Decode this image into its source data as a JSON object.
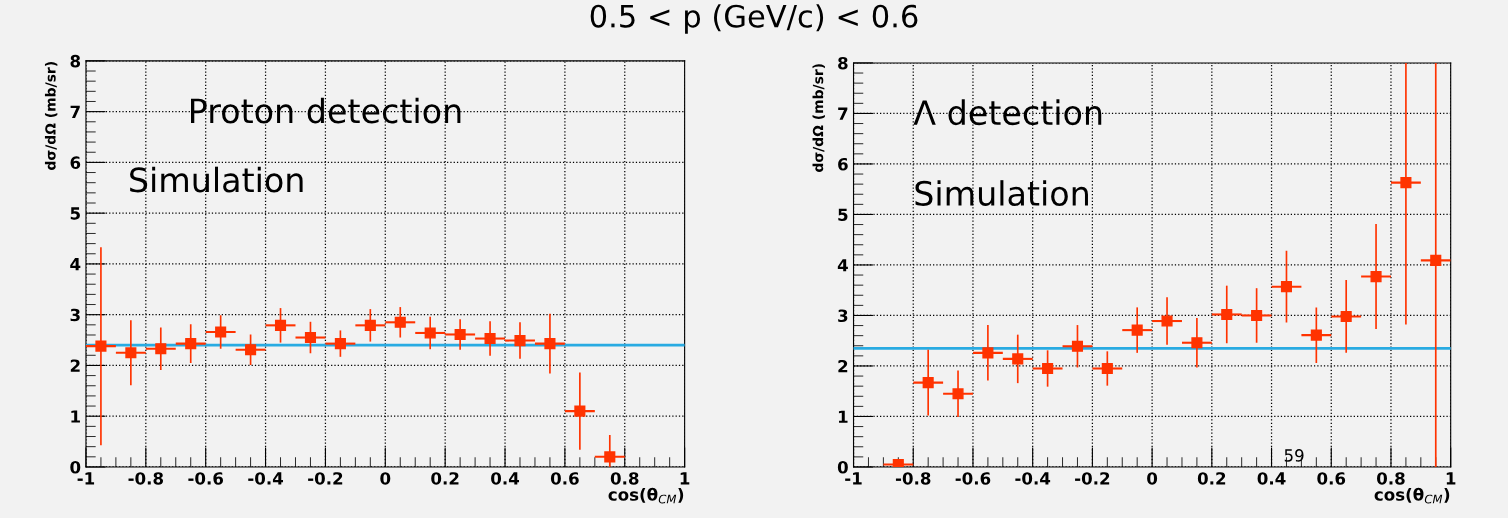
{
  "chart_data": [
    {
      "type": "scatter",
      "title": "0.5 < p (GeV/c) < 0.6",
      "xlabel": "cos(θ$_{CM}$)",
      "ylabel": "dσ/dΩ (mb/sr)",
      "series": [
        {
          "color": "#ff3300",
          "x": [
            -0.95,
            -0.85,
            -0.75,
            -0.65,
            -0.55,
            -0.45,
            -0.35,
            -0.25,
            -0.15,
            -0.05,
            0.05,
            0.15,
            0.25,
            0.35,
            0.45,
            0.55,
            0.65,
            0.75
          ],
          "values": [
            2.38,
            2.25,
            2.33,
            2.43,
            2.66,
            2.31,
            2.79,
            2.55,
            2.43,
            2.79,
            2.85,
            2.64,
            2.61,
            2.53,
            2.49,
            2.43,
            1.1,
            0.2
          ],
          "errors": [
            1.95,
            0.64,
            0.42,
            0.38,
            0.33,
            0.3,
            0.34,
            0.31,
            0.26,
            0.32,
            0.3,
            0.32,
            0.3,
            0.34,
            0.36,
            0.59,
            0.76,
            0.43
          ],
          "xerrors": [
            0.05,
            0.05,
            0.05,
            0.05,
            0.05,
            0.05,
            0.05,
            0.05,
            0.05,
            0.05,
            0.05,
            0.05,
            0.05,
            0.05,
            0.05,
            0.05,
            0.05,
            0.05
          ]
        }
      ],
      "ref_lines": [
        {
          "axis": "y",
          "value": 2.4,
          "color": "#29abe2"
        }
      ],
      "annotations": [
        "Proton detection",
        "Simulation"
      ],
      "xlim": [
        -1,
        1
      ],
      "xticks": [
        -1,
        -0.8,
        -0.6,
        -0.4,
        -0.2,
        0,
        0.2,
        0.4,
        0.6,
        0.8,
        1
      ],
      "ylim": [
        0,
        8
      ],
      "yticks": [
        0,
        1,
        2,
        3,
        4,
        5,
        6,
        7,
        8
      ],
      "grid": true,
      "marker": "square"
    },
    {
      "type": "scatter",
      "xlabel": "cos(θ$_{CM}$)",
      "ylabel": "dσ/dΩ (mb/sr)",
      "series": [
        {
          "color": "#ff3300",
          "x": [
            -0.85,
            -0.75,
            -0.65,
            -0.55,
            -0.45,
            -0.35,
            -0.25,
            -0.15,
            -0.05,
            0.05,
            0.15,
            0.25,
            0.35,
            0.45,
            0.55,
            0.65,
            0.75,
            0.85,
            0.95
          ],
          "values": [
            0.05,
            1.67,
            1.45,
            2.26,
            2.14,
            1.95,
            2.39,
            1.95,
            2.71,
            2.89,
            2.46,
            3.02,
            3.0,
            3.57,
            2.61,
            2.98,
            3.77,
            5.63,
            4.09
          ],
          "errors": [
            null,
            0.65,
            0.46,
            0.55,
            0.48,
            0.36,
            0.42,
            0.34,
            0.45,
            0.47,
            0.49,
            0.57,
            0.54,
            0.71,
            0.55,
            0.72,
            1.04,
            [
              2.82,
              8
            ],
            [
              0,
              8
            ]
          ],
          "xerrors": [
            0.05,
            0.05,
            0.05,
            0.05,
            0.05,
            0.05,
            0.05,
            0.05,
            0.05,
            0.05,
            0.05,
            0.05,
            0.05,
            0.05,
            0.05,
            0.05,
            0.05,
            0.05,
            0.05
          ]
        }
      ],
      "ref_lines": [
        {
          "axis": "y",
          "value": 2.35,
          "color": "#29abe2"
        }
      ],
      "annotations": [
        "Λ detection",
        "Simulation",
        "59"
      ],
      "xlim": [
        -1,
        1
      ],
      "xticks": [
        -1,
        -0.8,
        -0.6,
        -0.4,
        -0.2,
        0,
        0.2,
        0.4,
        0.6,
        0.8,
        1
      ],
      "ylim": [
        0,
        8
      ],
      "yticks": [
        0,
        1,
        2,
        3,
        4,
        5,
        6,
        7,
        8
      ],
      "grid": true,
      "marker": "square"
    }
  ]
}
